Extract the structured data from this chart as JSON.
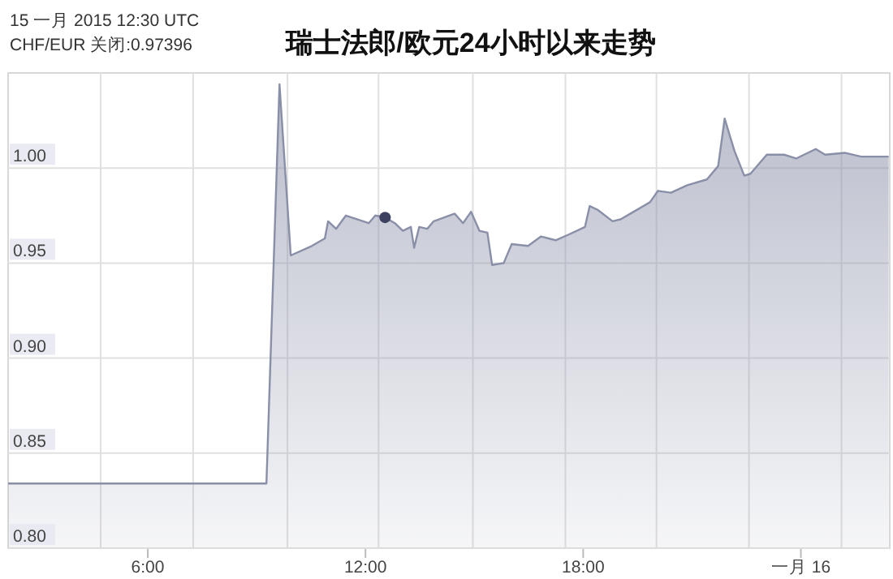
{
  "chart_data": {
    "type": "area",
    "title": "瑞士法郎/欧元24小时以来走势",
    "annotations": [
      "15 一月 2015 12:30 UTC",
      "CHF/EUR 关闭:0.97396"
    ],
    "xlim": [
      2.15,
      26.45
    ],
    "ylim": [
      0.8,
      1.05
    ],
    "xticks": [
      {
        "value": 4.7,
        "label": null
      },
      {
        "value": 6,
        "label": "6:00"
      },
      {
        "value": 7.25,
        "label": null
      },
      {
        "value": 9.85,
        "label": null
      },
      {
        "value": 12,
        "label": "12:00"
      },
      {
        "value": 12.36,
        "label": null
      },
      {
        "value": 14.96,
        "label": null
      },
      {
        "value": 17.51,
        "label": null
      },
      {
        "value": 18,
        "label": "18:00"
      },
      {
        "value": 20.02,
        "label": null
      },
      {
        "value": 22.57,
        "label": null
      },
      {
        "value": 24,
        "label": "一月 16"
      },
      {
        "value": 25.12,
        "label": null
      }
    ],
    "yticks": [
      {
        "value": 0.8,
        "label": "0.80"
      },
      {
        "value": 0.85,
        "label": "0.85"
      },
      {
        "value": 0.9,
        "label": "0.90"
      },
      {
        "value": 0.95,
        "label": "0.95"
      },
      {
        "value": 1.0,
        "label": "1.00"
      }
    ],
    "grid": true,
    "series": [
      {
        "type": "area",
        "color": "#8a8fa8",
        "marker": "none",
        "x": [
          2.15,
          9.27,
          9.63,
          9.94,
          10.52,
          10.88,
          10.97,
          11.19,
          11.46,
          12.09,
          12.27,
          12.54,
          12.81,
          13.03,
          13.25,
          13.34,
          13.48,
          13.7,
          13.88,
          14.46,
          14.69,
          14.91,
          15.14,
          15.36,
          15.49,
          15.81,
          16.03,
          16.48,
          16.84,
          17.24,
          17.6,
          18.05,
          18.18,
          18.4,
          18.81,
          19.03,
          19.39,
          19.84,
          20.06,
          20.42,
          20.87,
          21.41,
          21.72,
          21.9,
          22.17,
          22.44,
          22.61,
          23.06,
          23.55,
          23.87,
          24.41,
          24.67,
          25.21,
          25.66,
          26.42
        ],
        "values": [
          0.834,
          0.834,
          1.044,
          0.954,
          0.959,
          0.963,
          0.972,
          0.968,
          0.975,
          0.971,
          0.975,
          0.974,
          0.971,
          0.967,
          0.969,
          0.958,
          0.969,
          0.968,
          0.972,
          0.976,
          0.971,
          0.977,
          0.967,
          0.966,
          0.949,
          0.95,
          0.96,
          0.959,
          0.964,
          0.962,
          0.965,
          0.969,
          0.98,
          0.978,
          0.972,
          0.973,
          0.977,
          0.982,
          0.988,
          0.987,
          0.991,
          0.994,
          1.001,
          1.026,
          1.009,
          0.996,
          0.997,
          1.007,
          1.007,
          1.005,
          1.01,
          1.007,
          1.008,
          1.006,
          1.006
        ]
      },
      {
        "type": "scatter",
        "color": "#3d4160",
        "marker": "circle",
        "x": [
          12.54
        ],
        "values": [
          0.974
        ]
      }
    ]
  }
}
